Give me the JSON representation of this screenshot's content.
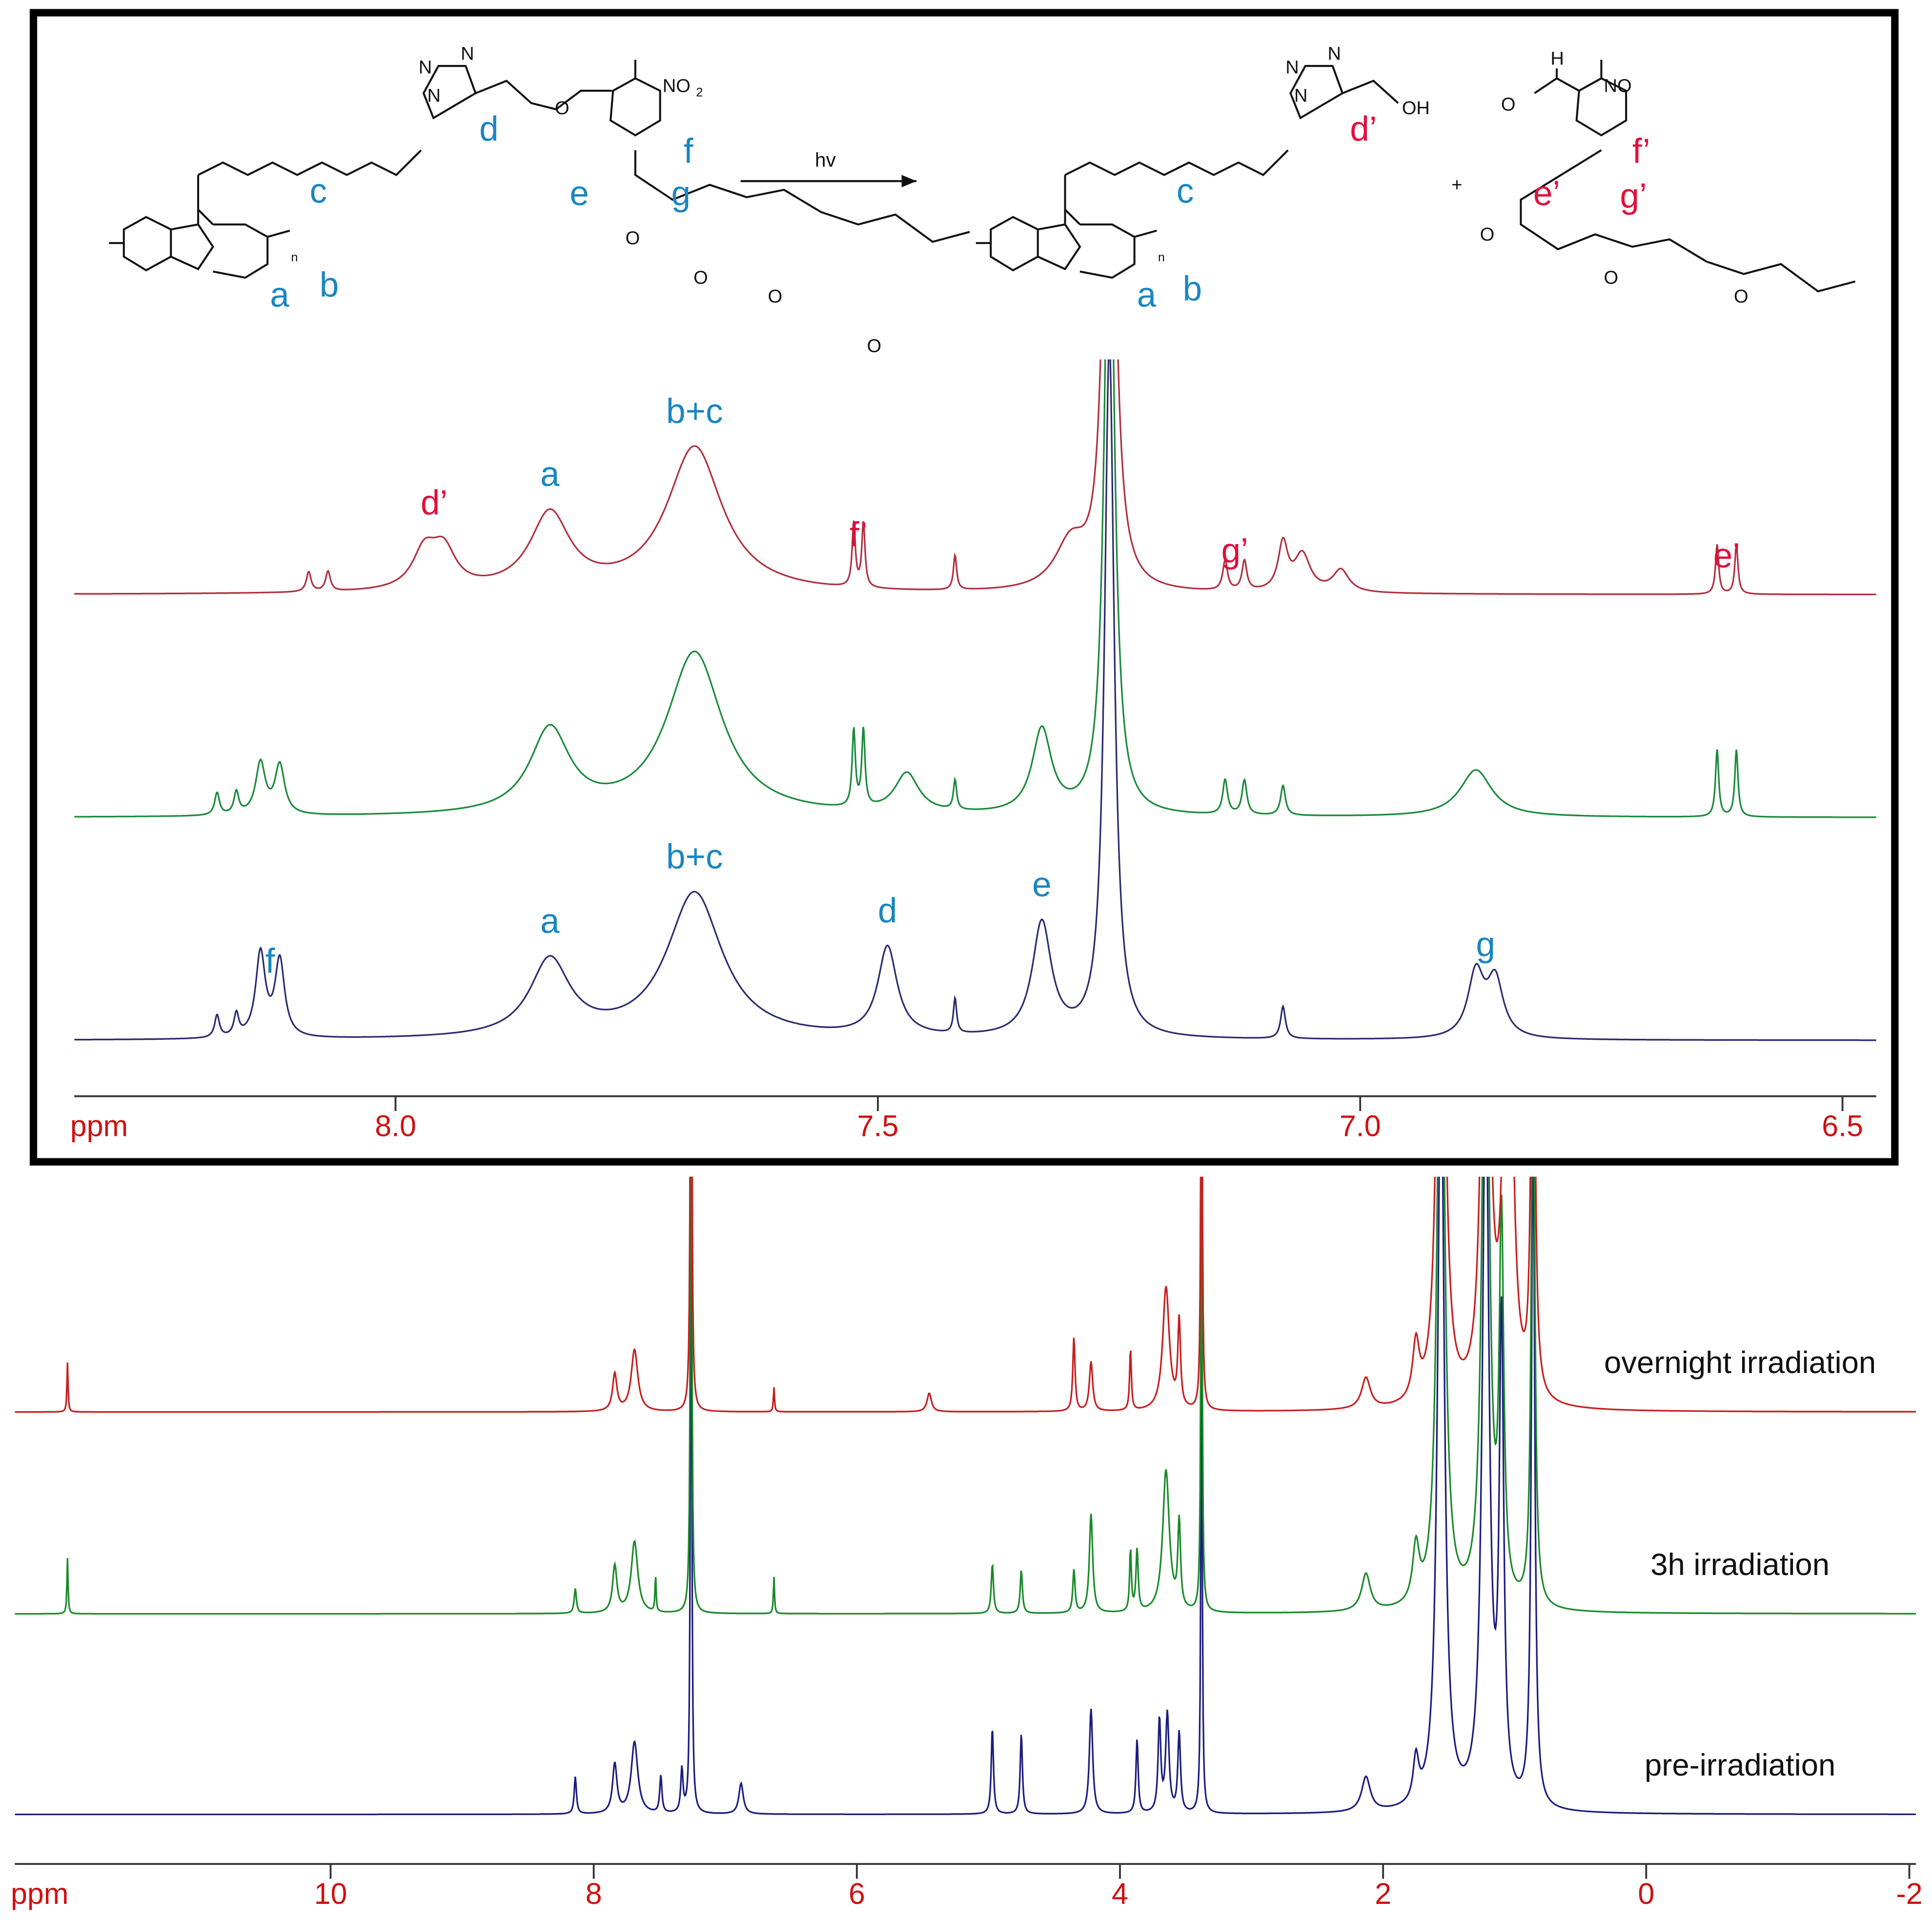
{
  "scheme": {
    "reactant": {
      "n1": "N",
      "n2": "N",
      "n3": "N",
      "o1": "O",
      "nitro": "NO",
      "nitro_sub": "2",
      "o2": "O",
      "o3": "O",
      "o4": "O",
      "o5": "O",
      "n": "n",
      "a": "a",
      "b": "b",
      "c": "c",
      "d": "d",
      "e": "e",
      "f": "f",
      "g": "g"
    },
    "arrow_label": "hv",
    "product": {
      "n1": "N",
      "n2": "N",
      "n3": "N",
      "oh": "OH",
      "n": "n",
      "a": "a",
      "b": "b",
      "c": "c",
      "d": "d’"
    },
    "plus": "+",
    "aldehyde": {
      "h": "H",
      "o1": "O",
      "nitroso": "NO",
      "o2": "O",
      "o3": "O",
      "o4": "O",
      "e": "e’",
      "f": "f’",
      "g": "g’"
    }
  },
  "inset": {
    "type": "line",
    "xlabel": "ppm",
    "xlim": [
      8.333,
      6.465
    ],
    "xticks": [
      {
        "value": 8,
        "label": "8.0"
      },
      7.5,
      {
        "value": 7,
        "label": "7.0"
      },
      6.5
    ],
    "series": [
      {
        "color": "#2b2b6e",
        "peaks": [
          8.185,
          8.165,
          8.14,
          8.12,
          7.84,
          7.69,
          7.49,
          7.42,
          7.33,
          7.26,
          7.08,
          6.88,
          6.86
        ],
        "heights": [
          18,
          18,
          68,
          62,
          62,
          118,
          72,
          28,
          92,
          560,
          26,
          52,
          46
        ],
        "widths": [
          0.003,
          0.003,
          0.006,
          0.006,
          0.025,
          0.035,
          0.012,
          0.002,
          0.012,
          0.006,
          0.003,
          0.01,
          0.01
        ]
      },
      {
        "color": "#1a8a3a",
        "peaks": [
          8.185,
          8.165,
          8.14,
          8.12,
          7.84,
          7.69,
          7.525,
          7.515,
          7.47,
          7.42,
          7.33,
          7.26,
          7.14,
          7.12,
          7.08,
          6.88,
          6.63,
          6.61
        ],
        "heights": [
          18,
          18,
          42,
          40,
          68,
          132,
          62,
          62,
          32,
          24,
          68,
          560,
          28,
          28,
          24,
          38,
          54,
          54
        ],
        "widths": [
          0.003,
          0.003,
          0.006,
          0.006,
          0.025,
          0.035,
          0.002,
          0.002,
          0.015,
          0.002,
          0.012,
          0.006,
          0.003,
          0.003,
          0.003,
          0.02,
          0.002,
          0.002
        ]
      },
      {
        "color": "#b03040",
        "peaks": [
          8.09,
          8.07,
          7.97,
          7.95,
          7.84,
          7.69,
          7.525,
          7.515,
          7.42,
          7.3,
          7.26,
          7.14,
          7.12,
          7.08,
          7.06,
          7.02,
          6.63,
          6.61
        ],
        "heights": [
          16,
          16,
          30,
          30,
          62,
          118,
          52,
          52,
          28,
          38,
          600,
          24,
          24,
          38,
          30,
          18,
          40,
          40
        ],
        "widths": [
          0.003,
          0.003,
          0.015,
          0.015,
          0.025,
          0.035,
          0.002,
          0.002,
          0.002,
          0.02,
          0.006,
          0.003,
          0.003,
          0.006,
          0.01,
          0.01,
          0.002,
          0.002
        ]
      }
    ],
    "peak_labels": [
      {
        "text": "f",
        "ppm": 8.13,
        "series": 0,
        "color": "blue"
      },
      {
        "text": "a",
        "ppm": 7.84,
        "series": 0,
        "color": "blue"
      },
      {
        "text": "b+c",
        "ppm": 7.69,
        "series": 0,
        "color": "blue"
      },
      {
        "text": "d",
        "ppm": 7.49,
        "series": 0,
        "color": "blue"
      },
      {
        "text": "e",
        "ppm": 7.33,
        "series": 0,
        "color": "blue"
      },
      {
        "text": "g",
        "ppm": 6.87,
        "series": 0,
        "color": "blue"
      },
      {
        "text": "d’",
        "ppm": 7.96,
        "series": 2,
        "color": "red"
      },
      {
        "text": "a",
        "ppm": 7.84,
        "series": 2,
        "color": "blue"
      },
      {
        "text": "b+c",
        "ppm": 7.69,
        "series": 2,
        "color": "blue"
      },
      {
        "text": "f’",
        "ppm": 7.52,
        "series": 2,
        "color": "red"
      },
      {
        "text": "g’",
        "ppm": 7.13,
        "series": 2,
        "color": "red"
      },
      {
        "text": "e’",
        "ppm": 6.62,
        "series": 2,
        "color": "red"
      }
    ]
  },
  "chart_data": {
    "type": "line",
    "xlabel": "ppm",
    "xlim": [
      12.4,
      -2.05
    ],
    "xticks": [
      10,
      8,
      6,
      4,
      2,
      0,
      -2
    ],
    "series": [
      {
        "name": "pre-irradiation",
        "color": "#1c1c80",
        "peaks": [
          8.14,
          7.84,
          7.69,
          7.49,
          7.33,
          7.26,
          6.88,
          4.97,
          4.75,
          4.22,
          3.87,
          3.7,
          3.64,
          3.55,
          3.38,
          2.13,
          1.75,
          1.56,
          1.22,
          1.1,
          0.86
        ],
        "heights": [
          30,
          40,
          58,
          30,
          35,
          560,
          25,
          70,
          65,
          85,
          60,
          75,
          80,
          65,
          420,
          28,
          35,
          620,
          600,
          380,
          560
        ],
        "widths": [
          0.01,
          0.02,
          0.03,
          0.01,
          0.01,
          0.006,
          0.02,
          0.01,
          0.01,
          0.015,
          0.01,
          0.012,
          0.015,
          0.012,
          0.006,
          0.04,
          0.025,
          0.03,
          0.03,
          0.02,
          0.015
        ]
      },
      {
        "name": "3h irradiation",
        "color": "#1a8a2a",
        "peaks": [
          12,
          8.14,
          7.84,
          7.69,
          7.53,
          7.26,
          6.63,
          4.97,
          4.75,
          4.35,
          4.22,
          3.92,
          3.87,
          3.65,
          3.55,
          3.38,
          2.13,
          1.75,
          1.56,
          1.22,
          1.1,
          0.86
        ],
        "heights": [
          45,
          20,
          38,
          58,
          30,
          560,
          30,
          40,
          35,
          35,
          80,
          50,
          50,
          115,
          70,
          420,
          30,
          45,
          620,
          600,
          300,
          500
        ],
        "widths": [
          0.005,
          0.01,
          0.02,
          0.03,
          0.005,
          0.006,
          0.005,
          0.01,
          0.01,
          0.01,
          0.015,
          0.008,
          0.01,
          0.03,
          0.012,
          0.006,
          0.04,
          0.03,
          0.03,
          0.03,
          0.02,
          0.015
        ]
      },
      {
        "name": "overnight irradiation",
        "color": "#c81e1e",
        "peaks": [
          12,
          7.84,
          7.69,
          7.26,
          6.63,
          5.45,
          4.35,
          4.22,
          3.92,
          3.65,
          3.55,
          3.38,
          2.13,
          1.75,
          1.56,
          1.22,
          1.05,
          0.86
        ],
        "heights": [
          40,
          30,
          50,
          560,
          20,
          15,
          60,
          40,
          50,
          100,
          70,
          420,
          25,
          45,
          620,
          600,
          600,
          500
        ],
        "widths": [
          0.005,
          0.02,
          0.03,
          0.006,
          0.005,
          0.02,
          0.01,
          0.015,
          0.008,
          0.03,
          0.012,
          0.006,
          0.04,
          0.03,
          0.03,
          0.03,
          0.03,
          0.015
        ]
      }
    ]
  }
}
